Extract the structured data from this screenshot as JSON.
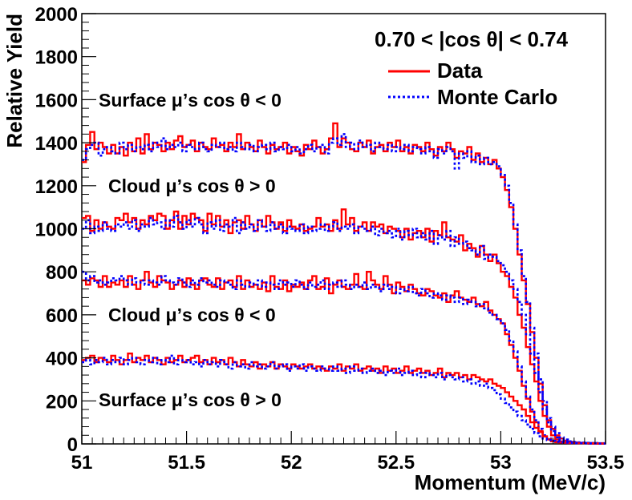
{
  "chart_data": {
    "type": "line",
    "xlabel": "Momentum (MeV/c)",
    "ylabel": "Relative Yield",
    "xlim": [
      51,
      53.5
    ],
    "ylim": [
      0,
      2000
    ],
    "grid": false,
    "x_ticks": [
      "51",
      "51.5",
      "52",
      "52.5",
      "53",
      "53.5"
    ],
    "y_ticks": [
      "0",
      "200",
      "400",
      "600",
      "800",
      "1000",
      "1200",
      "1400",
      "1600",
      "1800",
      "2000"
    ],
    "legend": {
      "placement": "top-right",
      "title": "0.70 < |cos θ| < 0.74",
      "entries": [
        {
          "label": "Data",
          "color": "#ff0000",
          "style": "solid"
        },
        {
          "label": "Monte Carlo",
          "color": "#0000ff",
          "style": "dotted"
        }
      ]
    },
    "annotations": [
      "Surface μ’s cos θ < 0",
      "Cloud μ’s cos θ > 0",
      "Cloud μ’s cos θ < 0",
      "Surface μ’s cos θ > 0"
    ],
    "bin_width": 0.02,
    "x_start": 51,
    "series": [
      {
        "name": "Data",
        "color": "#ff0000",
        "group": "Surface μ’s cos θ < 0",
        "values": [
          1310,
          1390,
          1450,
          1370,
          1400,
          1380,
          1350,
          1390,
          1350,
          1380,
          1340,
          1400,
          1360,
          1420,
          1350,
          1440,
          1370,
          1400,
          1390,
          1360,
          1400,
          1370,
          1410,
          1430,
          1380,
          1390,
          1410,
          1360,
          1400,
          1380,
          1370,
          1420,
          1380,
          1390,
          1360,
          1400,
          1380,
          1440,
          1370,
          1400,
          1380,
          1360,
          1410,
          1380,
          1350,
          1390,
          1370,
          1380,
          1400,
          1350,
          1380,
          1360,
          1340,
          1390,
          1370,
          1410,
          1380,
          1350,
          1370,
          1420,
          1490,
          1380,
          1420,
          1400,
          1370,
          1360,
          1400,
          1380,
          1410,
          1350,
          1380,
          1390,
          1360,
          1400,
          1380,
          1410,
          1360,
          1380,
          1350,
          1390,
          1380,
          1360,
          1400,
          1370,
          1340,
          1380,
          1360,
          1400,
          1370,
          1330,
          1360,
          1350,
          1380,
          1320,
          1350,
          1310,
          1330,
          1300,
          1320,
          1280,
          1240,
          1180,
          1100,
          1000,
          880,
          760,
          650,
          520,
          400,
          280,
          180,
          110,
          70,
          40,
          25,
          15,
          10,
          8,
          6,
          5,
          5,
          4,
          4,
          3,
          3
        ]
      },
      {
        "name": "Monte Carlo",
        "color": "#0000ff",
        "group": "Surface μ’s cos θ < 0",
        "values": [
          1320,
          1370,
          1390,
          1400,
          1340,
          1370,
          1380,
          1360,
          1350,
          1400,
          1370,
          1390,
          1360,
          1380,
          1370,
          1390,
          1360,
          1400,
          1380,
          1420,
          1370,
          1390,
          1380,
          1400,
          1360,
          1390,
          1380,
          1370,
          1400,
          1370,
          1360,
          1390,
          1380,
          1400,
          1370,
          1380,
          1360,
          1400,
          1380,
          1370,
          1390,
          1360,
          1380,
          1390,
          1370,
          1400,
          1360,
          1380,
          1370,
          1390,
          1360,
          1380,
          1350,
          1370,
          1390,
          1360,
          1380,
          1390,
          1350,
          1400,
          1420,
          1390,
          1440,
          1380,
          1400,
          1370,
          1410,
          1380,
          1390,
          1360,
          1400,
          1380,
          1370,
          1390,
          1360,
          1380,
          1370,
          1390,
          1360,
          1380,
          1370,
          1350,
          1380,
          1360,
          1330,
          1370,
          1350,
          1380,
          1360,
          1280,
          1350,
          1330,
          1360,
          1310,
          1340,
          1300,
          1330,
          1300,
          1310,
          1290,
          1250,
          1200,
          1120,
          1020,
          900,
          780,
          660,
          540,
          420,
          300,
          200,
          120,
          80,
          50,
          30,
          20,
          12,
          9,
          7,
          6,
          5,
          4,
          4,
          3,
          3
        ]
      },
      {
        "name": "Data",
        "color": "#ff0000",
        "group": "Cloud μ’s cos θ > 0",
        "values": [
          1050,
          1060,
          990,
          1040,
          1000,
          1030,
          1010,
          1000,
          1050,
          1040,
          1070,
          1030,
          1050,
          1000,
          1040,
          1020,
          1060,
          1040,
          1070,
          1060,
          1000,
          1040,
          1080,
          1000,
          1060,
          1020,
          1070,
          1050,
          1040,
          990,
          1070,
          1020,
          1060,
          1010,
          1040,
          980,
          1030,
          1040,
          1000,
          1060,
          1020,
          990,
          1040,
          1010,
          1060,
          1030,
          1000,
          1030,
          990,
          1040,
          1010,
          1000,
          1020,
          990,
          1000,
          1010,
          1050,
          1010,
          1020,
          990,
          1040,
          1000,
          1090,
          1020,
          1050,
          990,
          1010,
          1030,
          990,
          1030,
          1010,
          1020,
          980,
          1010,
          1000,
          990,
          960,
          1000,
          950,
          980,
          990,
          960,
          1000,
          940,
          990,
          970,
          1030,
          960,
          950,
          940,
          970,
          900,
          930,
          910,
          870,
          920,
          880,
          850,
          880,
          840,
          800,
          780,
          730,
          680,
          600,
          540,
          450,
          370,
          290,
          200,
          130,
          80,
          40,
          20,
          12,
          8,
          6,
          5,
          4,
          4,
          3,
          3,
          3,
          2,
          2
        ]
      },
      {
        "name": "Monte Carlo",
        "color": "#0000ff",
        "group": "Cloud μ’s cos θ > 0",
        "values": [
          1000,
          1040,
          980,
          1010,
          990,
          1030,
          1000,
          990,
          1020,
          1010,
          1030,
          1000,
          1040,
          990,
          1020,
          1010,
          1050,
          1020,
          1030,
          1000,
          1040,
          1010,
          1060,
          1030,
          1000,
          1040,
          1010,
          1050,
          1020,
          980,
          1030,
          1000,
          1040,
          990,
          1020,
          1010,
          1050,
          980,
          1030,
          1000,
          1020,
          990,
          1040,
          1010,
          990,
          1030,
          1000,
          1020,
          980,
          1010,
          1000,
          990,
          1020,
          980,
          1010,
          990,
          1000,
          1020,
          990,
          1010,
          1030,
          990,
          1010,
          1000,
          1020,
          980,
          1010,
          1000,
          990,
          1010,
          970,
          1000,
          980,
          990,
          960,
          1000,
          950,
          990,
          970,
          1000,
          960,
          980,
          950,
          990,
          930,
          970,
          950,
          990,
          920,
          960,
          930,
          940,
          910,
          900,
          880,
          920,
          860,
          880,
          870,
          850,
          830,
          800,
          760,
          720,
          660,
          600,
          510,
          420,
          330,
          240,
          160,
          100,
          60,
          30,
          18,
          10,
          7,
          5,
          5,
          4,
          4,
          3,
          3
        ]
      },
      {
        "name": "Data",
        "color": "#ff0000",
        "group": "Cloud μ’s cos θ < 0",
        "values": [
          760,
          740,
          770,
          760,
          730,
          780,
          730,
          750,
          740,
          760,
          730,
          780,
          740,
          720,
          760,
          800,
          750,
          730,
          780,
          760,
          750,
          720,
          740,
          760,
          730,
          770,
          740,
          720,
          760,
          770,
          740,
          730,
          770,
          720,
          750,
          760,
          730,
          780,
          720,
          760,
          730,
          740,
          720,
          750,
          710,
          780,
          730,
          720,
          760,
          710,
          740,
          730,
          750,
          720,
          760,
          780,
          720,
          730,
          770,
          700,
          740,
          760,
          730,
          720,
          740,
          790,
          730,
          720,
          800,
          760,
          740,
          720,
          780,
          740,
          700,
          750,
          730,
          710,
          740,
          720,
          700,
          690,
          720,
          710,
          690,
          680,
          700,
          660,
          690,
          710,
          680,
          670,
          660,
          680,
          650,
          640,
          660,
          620,
          600,
          580,
          560,
          510,
          460,
          400,
          340,
          270,
          210,
          150,
          100,
          60,
          35,
          20,
          12,
          8,
          6,
          5,
          4,
          4,
          3,
          3,
          3,
          2,
          2,
          2,
          2
        ]
      },
      {
        "name": "Monte Carlo",
        "color": "#0000ff",
        "group": "Cloud μ’s cos θ < 0",
        "values": [
          800,
          760,
          780,
          750,
          760,
          740,
          750,
          770,
          760,
          780,
          760,
          740,
          770,
          750,
          760,
          740,
          760,
          750,
          740,
          780,
          760,
          750,
          740,
          770,
          750,
          730,
          760,
          740,
          770,
          750,
          760,
          740,
          730,
          760,
          750,
          740,
          720,
          760,
          740,
          730,
          750,
          740,
          760,
          730,
          750,
          740,
          720,
          760,
          740,
          750,
          730,
          760,
          740,
          720,
          750,
          730,
          740,
          760,
          720,
          740,
          750,
          730,
          760,
          740,
          720,
          740,
          730,
          750,
          720,
          740,
          730,
          710,
          740,
          720,
          730,
          700,
          720,
          710,
          730,
          700,
          690,
          720,
          700,
          680,
          700,
          690,
          670,
          690,
          680,
          660,
          680,
          650,
          670,
          660,
          640,
          650,
          630,
          610,
          600,
          580,
          560,
          530,
          480,
          430,
          360,
          290,
          220,
          160,
          110,
          70,
          40,
          25,
          15,
          10,
          7,
          5,
          4,
          4,
          3,
          3,
          3,
          2,
          2,
          2,
          2
        ]
      },
      {
        "name": "Data",
        "color": "#ff0000",
        "group": "Surface μ’s cos θ > 0",
        "values": [
          390,
          400,
          410,
          380,
          400,
          390,
          380,
          410,
          390,
          370,
          390,
          420,
          380,
          400,
          390,
          410,
          380,
          400,
          390,
          370,
          400,
          380,
          390,
          410,
          380,
          390,
          400,
          410,
          380,
          390,
          370,
          400,
          380,
          390,
          370,
          400,
          380,
          360,
          390,
          370,
          360,
          380,
          350,
          370,
          360,
          380,
          350,
          370,
          360,
          350,
          370,
          360,
          350,
          360,
          370,
          350,
          360,
          350,
          340,
          360,
          350,
          370,
          340,
          360,
          350,
          370,
          340,
          350,
          360,
          340,
          350,
          330,
          360,
          340,
          350,
          330,
          340,
          360,
          330,
          340,
          350,
          330,
          340,
          320,
          330,
          350,
          310,
          330,
          320,
          330,
          310,
          320,
          300,
          320,
          310,
          300,
          290,
          300,
          280,
          270,
          260,
          240,
          220,
          200,
          180,
          160,
          130,
          100,
          75,
          55,
          35,
          22,
          15,
          10,
          8,
          6,
          5,
          4,
          4,
          3,
          3,
          3,
          2,
          2,
          2
        ]
      },
      {
        "name": "Monte Carlo",
        "color": "#0000ff",
        "group": "Surface μ’s cos θ > 0",
        "values": [
          380,
          390,
          370,
          390,
          380,
          400,
          370,
          390,
          380,
          400,
          370,
          390,
          400,
          380,
          370,
          390,
          380,
          400,
          370,
          390,
          380,
          410,
          370,
          390,
          380,
          390,
          370,
          380,
          360,
          390,
          370,
          380,
          360,
          390,
          370,
          350,
          380,
          360,
          370,
          350,
          380,
          360,
          370,
          350,
          360,
          380,
          350,
          360,
          370,
          340,
          360,
          350,
          370,
          340,
          360,
          350,
          340,
          360,
          350,
          340,
          360,
          340,
          350,
          330,
          360,
          340,
          350,
          330,
          340,
          350,
          330,
          340,
          320,
          340,
          330,
          350,
          320,
          330,
          340,
          320,
          330,
          310,
          330,
          320,
          310,
          330,
          300,
          320,
          310,
          300,
          310,
          290,
          300,
          280,
          290,
          270,
          280,
          260,
          250,
          230,
          210,
          190,
          170,
          150,
          130,
          110,
          90,
          70,
          50,
          35,
          25,
          18,
          14,
          10,
          8,
          7,
          6,
          5,
          4,
          4,
          3,
          3,
          3,
          2,
          2
        ]
      }
    ]
  }
}
